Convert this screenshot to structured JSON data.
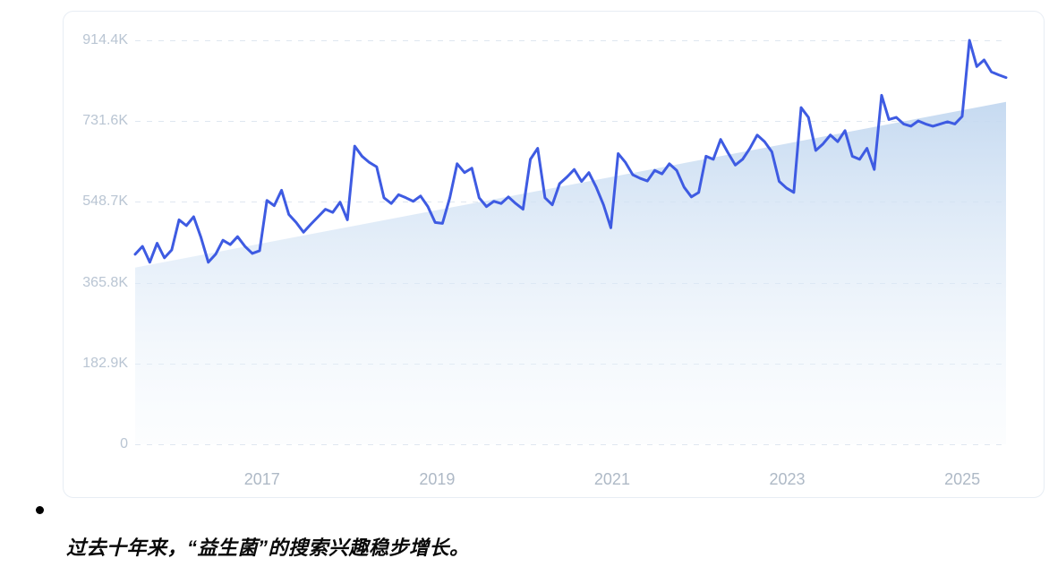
{
  "chart_data": {
    "type": "area",
    "title": "",
    "xlabel": "",
    "ylabel": "",
    "grid": true,
    "legend": "none",
    "ylim": [
      0,
      914400
    ],
    "y_ticks": [
      "914.4K",
      "731.6K",
      "548.7K",
      "365.8K",
      "182.9K",
      "0"
    ],
    "y_tick_values_k": [
      914.4,
      731.6,
      548.7,
      365.8,
      182.9,
      0
    ],
    "x_ticks": [
      "2017",
      "2019",
      "2021",
      "2023",
      "2025"
    ],
    "x_range": [
      2015.55,
      2025.5
    ],
    "line_color": "#3e5be2",
    "area_top_color": "#c3d8f0",
    "area_bottom_color": "#f2f8fd",
    "grid_color": "#dfe7f0",
    "trend_fill": {
      "start_k": 400,
      "end_k": 775
    },
    "values_k": [
      430,
      448,
      412,
      455,
      422,
      440,
      508,
      495,
      515,
      468,
      412,
      430,
      462,
      452,
      470,
      448,
      432,
      438,
      552,
      540,
      575,
      520,
      502,
      480,
      498,
      515,
      532,
      525,
      548,
      508,
      675,
      652,
      638,
      628,
      558,
      545,
      565,
      558,
      550,
      562,
      538,
      502,
      500,
      558,
      635,
      615,
      625,
      558,
      538,
      550,
      545,
      560,
      545,
      532,
      645,
      670,
      558,
      542,
      590,
      605,
      622,
      595,
      615,
      582,
      542,
      490,
      658,
      638,
      610,
      602,
      596,
      620,
      612,
      635,
      620,
      582,
      560,
      570,
      652,
      645,
      690,
      660,
      632,
      645,
      670,
      700,
      685,
      662,
      595,
      580,
      570,
      762,
      740,
      665,
      680,
      700,
      685,
      710,
      652,
      645,
      670,
      622,
      790,
      735,
      740,
      725,
      720,
      732,
      725,
      720,
      725,
      730,
      725,
      742,
      914.4,
      855,
      870,
      843,
      836,
      830
    ]
  },
  "caption": {
    "bullet": "•",
    "text": "过去十年来，“益生菌”的搜索兴趣稳步增长。"
  }
}
